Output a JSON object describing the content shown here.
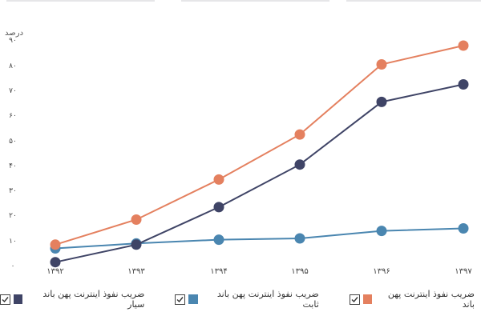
{
  "chart_data": {
    "type": "line",
    "title": "",
    "ylabel": "درصد",
    "xlabel": "",
    "ylim": [
      0,
      90
    ],
    "y_ticks": [
      "۰",
      "۱۰",
      "۲۰",
      "۳۰",
      "۴۰",
      "۵۰",
      "۶۰",
      "۷۰",
      "۸۰",
      "۹۰"
    ],
    "categories": [
      "۱۳۹۲",
      "۱۳۹۳",
      "۱۳۹۴",
      "۱۳۹۵",
      "۱۳۹۶",
      "۱۳۹۷"
    ],
    "grid": false,
    "legend_position": "bottom",
    "series": [
      {
        "name": "ضریب نفوذ اینترنت پهن باند",
        "color": "#e4805f",
        "values": [
          9,
          19,
          35,
          53,
          81,
          88.5
        ]
      },
      {
        "name": "ضریب نفوذ اینترنت پهن باند ثابت",
        "color": "#4a86b0",
        "values": [
          7.5,
          9.5,
          11,
          11.5,
          14.5,
          15.5
        ]
      },
      {
        "name": "ضریب نفوذ اینترنت پهن باند سیار",
        "color": "#3f4466",
        "values": [
          2,
          9,
          24,
          41,
          66,
          73
        ]
      }
    ]
  },
  "legend": [
    {
      "label": "ضریب نفوذ اینترنت پهن باند",
      "color": "#e4805f",
      "checked": true
    },
    {
      "label": "ضریب نفوذ اینترنت پهن باند ثابت",
      "color": "#4a86b0",
      "checked": true
    },
    {
      "label": "ضریب نفوذ اینترنت پهن باند سیار",
      "color": "#3f4466",
      "checked": true
    }
  ]
}
